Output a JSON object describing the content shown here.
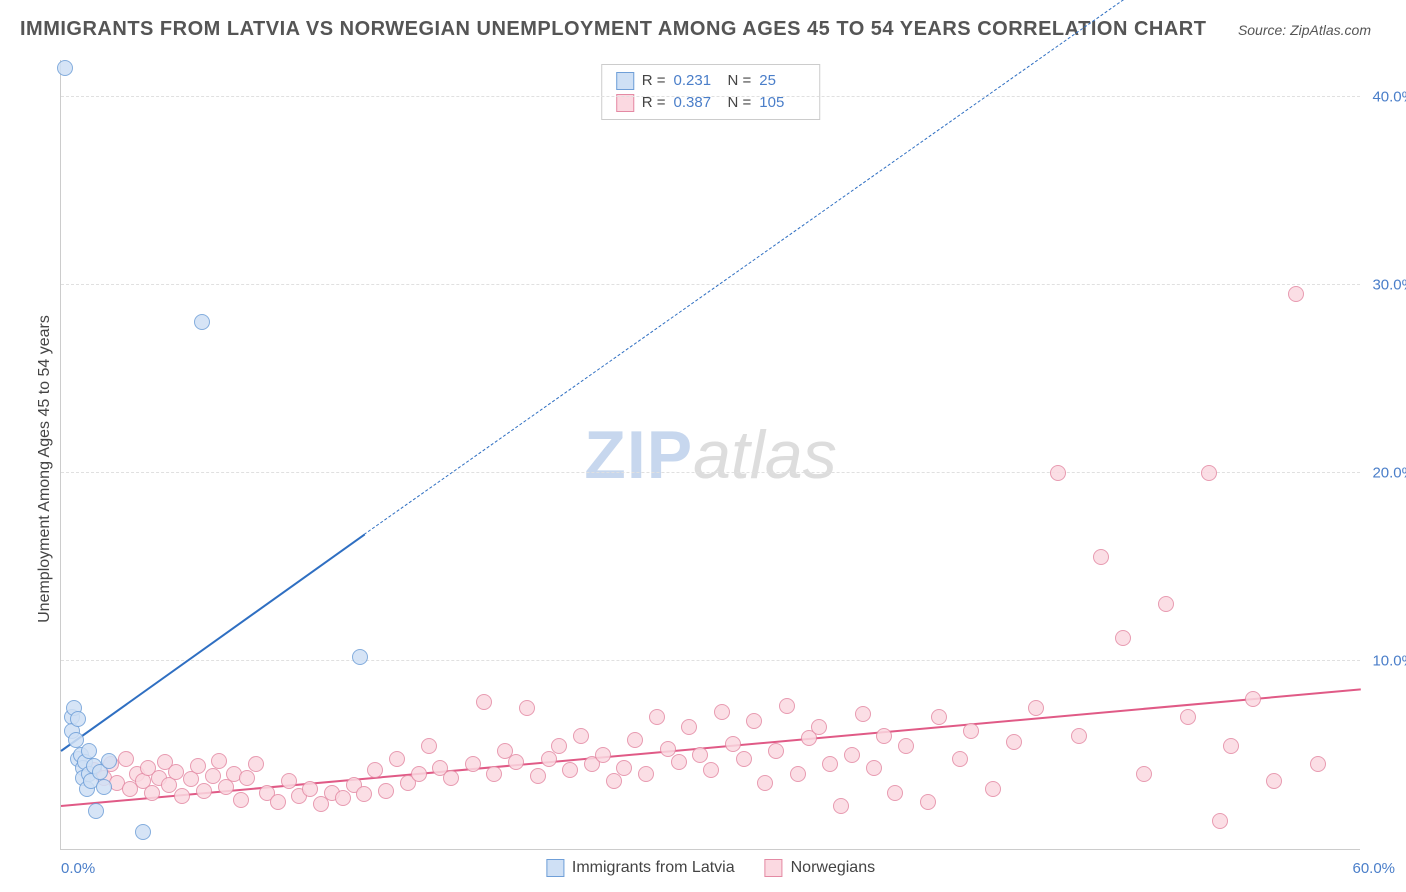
{
  "title": "IMMIGRANTS FROM LATVIA VS NORWEGIAN UNEMPLOYMENT AMONG AGES 45 TO 54 YEARS CORRELATION CHART",
  "source_label": "Source:",
  "source_value": "ZipAtlas.com",
  "ylabel": "Unemployment Among Ages 45 to 54 years",
  "watermark_a": "ZIP",
  "watermark_b": "atlas",
  "chart": {
    "type": "scatter",
    "background_color": "#ffffff",
    "grid_color": "#e0e0e0",
    "axis_color": "#cccccc",
    "label_color": "#4a7ec9",
    "title_color": "#555555",
    "title_fontsize": 20,
    "ylabel_fontsize": 16,
    "tick_fontsize": 15,
    "xlim": [
      0,
      60
    ],
    "ylim": [
      0,
      42
    ],
    "yticks": [
      10,
      20,
      30,
      40
    ],
    "ytick_labels": [
      "10.0%",
      "20.0%",
      "30.0%",
      "40.0%"
    ],
    "xticks": [
      0,
      60
    ],
    "xtick_labels": [
      "0.0%",
      "60.0%"
    ],
    "marker_radius": 8,
    "marker_border_width": 1.5,
    "series": [
      {
        "id": "latvia",
        "label": "Immigrants from Latvia",
        "fill": "#cfe0f5",
        "stroke": "#6f9fd8",
        "R": "0.231",
        "N": "25",
        "trend": {
          "x1": 0,
          "y1": 5.3,
          "x2": 14,
          "y2": 16.8,
          "solid": true,
          "dash_to_x": 50,
          "dash_to_y": 46,
          "color": "#2f6fc2",
          "width": 2
        },
        "points": [
          [
            0.2,
            41.5
          ],
          [
            0.5,
            7.0
          ],
          [
            0.5,
            6.3
          ],
          [
            0.6,
            7.5
          ],
          [
            0.7,
            5.8
          ],
          [
            0.8,
            6.9
          ],
          [
            0.8,
            4.8
          ],
          [
            0.9,
            5.0
          ],
          [
            1.0,
            4.3
          ],
          [
            1.0,
            3.8
          ],
          [
            1.1,
            4.6
          ],
          [
            1.2,
            3.2
          ],
          [
            1.3,
            4.0
          ],
          [
            1.3,
            5.2
          ],
          [
            1.4,
            3.6
          ],
          [
            1.5,
            4.4
          ],
          [
            1.6,
            2.0
          ],
          [
            1.8,
            4.1
          ],
          [
            2.0,
            3.3
          ],
          [
            2.2,
            4.7
          ],
          [
            3.8,
            0.9
          ],
          [
            6.5,
            28.0
          ],
          [
            13.8,
            10.2
          ]
        ]
      },
      {
        "id": "norwegians",
        "label": "Norwegians",
        "fill": "#fbd9e1",
        "stroke": "#e48aa4",
        "R": "0.387",
        "N": "105",
        "trend": {
          "x1": 0,
          "y1": 2.4,
          "x2": 60,
          "y2": 8.6,
          "solid": true,
          "color": "#e05a86",
          "width": 2
        },
        "points": [
          [
            1.5,
            4.2
          ],
          [
            2.0,
            3.8
          ],
          [
            2.3,
            4.5
          ],
          [
            2.6,
            3.5
          ],
          [
            3.0,
            4.8
          ],
          [
            3.2,
            3.2
          ],
          [
            3.5,
            4.0
          ],
          [
            3.8,
            3.6
          ],
          [
            4.0,
            4.3
          ],
          [
            4.2,
            3.0
          ],
          [
            4.5,
            3.8
          ],
          [
            4.8,
            4.6
          ],
          [
            5.0,
            3.4
          ],
          [
            5.3,
            4.1
          ],
          [
            5.6,
            2.8
          ],
          [
            6.0,
            3.7
          ],
          [
            6.3,
            4.4
          ],
          [
            6.6,
            3.1
          ],
          [
            7.0,
            3.9
          ],
          [
            7.3,
            4.7
          ],
          [
            7.6,
            3.3
          ],
          [
            8.0,
            4.0
          ],
          [
            8.3,
            2.6
          ],
          [
            8.6,
            3.8
          ],
          [
            9.0,
            4.5
          ],
          [
            9.5,
            3.0
          ],
          [
            10.0,
            2.5
          ],
          [
            10.5,
            3.6
          ],
          [
            11.0,
            2.8
          ],
          [
            11.5,
            3.2
          ],
          [
            12.0,
            2.4
          ],
          [
            12.5,
            3.0
          ],
          [
            13.0,
            2.7
          ],
          [
            13.5,
            3.4
          ],
          [
            14.0,
            2.9
          ],
          [
            14.5,
            4.2
          ],
          [
            15.0,
            3.1
          ],
          [
            15.5,
            4.8
          ],
          [
            16.0,
            3.5
          ],
          [
            16.5,
            4.0
          ],
          [
            17.0,
            5.5
          ],
          [
            17.5,
            4.3
          ],
          [
            18.0,
            3.8
          ],
          [
            19.0,
            4.5
          ],
          [
            19.5,
            7.8
          ],
          [
            20.0,
            4.0
          ],
          [
            20.5,
            5.2
          ],
          [
            21.0,
            4.6
          ],
          [
            21.5,
            7.5
          ],
          [
            22.0,
            3.9
          ],
          [
            22.5,
            4.8
          ],
          [
            23.0,
            5.5
          ],
          [
            23.5,
            4.2
          ],
          [
            24.0,
            6.0
          ],
          [
            24.5,
            4.5
          ],
          [
            25.0,
            5.0
          ],
          [
            25.5,
            3.6
          ],
          [
            26.0,
            4.3
          ],
          [
            26.5,
            5.8
          ],
          [
            27.0,
            4.0
          ],
          [
            27.5,
            7.0
          ],
          [
            28.0,
            5.3
          ],
          [
            28.5,
            4.6
          ],
          [
            29.0,
            6.5
          ],
          [
            29.5,
            5.0
          ],
          [
            30.0,
            4.2
          ],
          [
            30.5,
            7.3
          ],
          [
            31.0,
            5.6
          ],
          [
            31.5,
            4.8
          ],
          [
            32.0,
            6.8
          ],
          [
            32.5,
            3.5
          ],
          [
            33.0,
            5.2
          ],
          [
            33.5,
            7.6
          ],
          [
            34.0,
            4.0
          ],
          [
            34.5,
            5.9
          ],
          [
            35.0,
            6.5
          ],
          [
            35.5,
            4.5
          ],
          [
            36.0,
            2.3
          ],
          [
            36.5,
            5.0
          ],
          [
            37.0,
            7.2
          ],
          [
            37.5,
            4.3
          ],
          [
            38.0,
            6.0
          ],
          [
            38.5,
            3.0
          ],
          [
            39.0,
            5.5
          ],
          [
            40.0,
            2.5
          ],
          [
            40.5,
            7.0
          ],
          [
            41.5,
            4.8
          ],
          [
            42.0,
            6.3
          ],
          [
            43.0,
            3.2
          ],
          [
            44.0,
            5.7
          ],
          [
            45.0,
            7.5
          ],
          [
            46.0,
            20.0
          ],
          [
            47.0,
            6.0
          ],
          [
            48.0,
            15.5
          ],
          [
            49.0,
            11.2
          ],
          [
            50.0,
            4.0
          ],
          [
            51.0,
            13.0
          ],
          [
            52.0,
            7.0
          ],
          [
            53.0,
            20.0
          ],
          [
            54.0,
            5.5
          ],
          [
            55.0,
            8.0
          ],
          [
            56.0,
            3.6
          ],
          [
            57.0,
            29.5
          ],
          [
            58.0,
            4.5
          ],
          [
            53.5,
            1.5
          ]
        ]
      }
    ]
  }
}
